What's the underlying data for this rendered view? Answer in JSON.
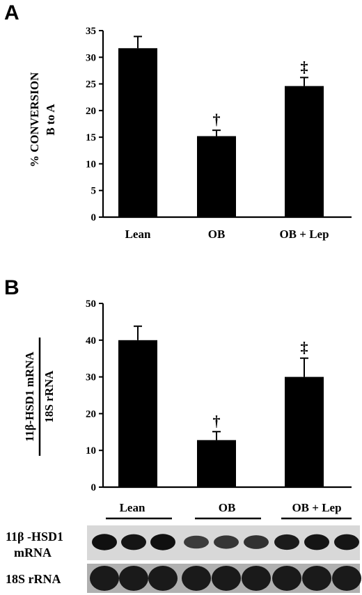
{
  "chart_data": [
    {
      "panel": "A",
      "type": "bar",
      "ylabel": [
        "% CONVERSION",
        "B to A"
      ],
      "categories": [
        "Lean",
        "OB",
        "OB + Lep"
      ],
      "values": [
        31.7,
        15.2,
        24.6
      ],
      "errors": [
        2.2,
        1.1,
        1.6
      ],
      "markers": [
        "",
        "†",
        "‡"
      ],
      "ylim": [
        0,
        35
      ],
      "yticks": [
        0,
        5,
        10,
        15,
        20,
        25,
        30,
        35
      ]
    },
    {
      "panel": "B",
      "type": "bar",
      "ylabel_top": "11β-HSD1 mRNA",
      "ylabel_bottom": "18S rRNA",
      "categories": [
        "Lean",
        "OB",
        "OB + Lep"
      ],
      "values": [
        40,
        12.8,
        30
      ],
      "errors": [
        3.8,
        2.3,
        5.1
      ],
      "markers": [
        "",
        "†",
        "‡"
      ],
      "ylim": [
        0,
        50
      ],
      "yticks": [
        0,
        10,
        20,
        30,
        40,
        50
      ]
    }
  ],
  "blot": {
    "groups": [
      "Lean",
      "OB",
      "OB + Lep"
    ],
    "rows": [
      {
        "label": [
          "11β -HSD1",
          "mRNA"
        ],
        "intensity": [
          0.95,
          0.9,
          0.95,
          0.55,
          0.6,
          0.65,
          0.85,
          0.9,
          0.9
        ]
      },
      {
        "label": [
          "18S rRNA"
        ],
        "intensity": [
          1,
          1,
          1,
          1,
          1,
          1,
          1,
          1,
          1
        ]
      }
    ]
  }
}
